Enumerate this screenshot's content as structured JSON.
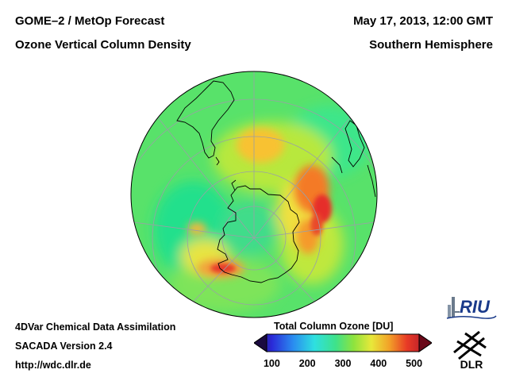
{
  "header": {
    "title_left_1": "GOME–2 / MetOp Forecast",
    "title_left_2": "Ozone Vertical Column Density",
    "title_right_1": "May 17, 2013, 12:00 GMT",
    "title_right_2": "Southern Hemisphere"
  },
  "footer": {
    "line1": "4DVar Chemical Data Assimilation",
    "line2": "SACADA Version 2.4",
    "line3": "http://wdc.dlr.de"
  },
  "colorbar": {
    "title": "Total Column Ozone [DU]",
    "ticks": [
      "100",
      "200",
      "300",
      "400",
      "500"
    ],
    "min": 50,
    "max": 550
  },
  "logos": {
    "riu_text": "RIU",
    "dlr_text": "DLR"
  },
  "colors": {
    "background": "#ffffff",
    "coastline": "#000000",
    "graticule": "#9aa0a6"
  },
  "map_data": {
    "projection": "orthographic-south-pole",
    "background_ozone_du": 270,
    "features": [
      {
        "name": "high-ozone-ring-east",
        "ozone_du": 450
      },
      {
        "name": "high-ozone-weddell",
        "ozone_du": 400
      },
      {
        "name": "moderate-ozone-south-america",
        "ozone_du": 350
      },
      {
        "name": "polar-low",
        "ozone_du": 230
      }
    ]
  }
}
